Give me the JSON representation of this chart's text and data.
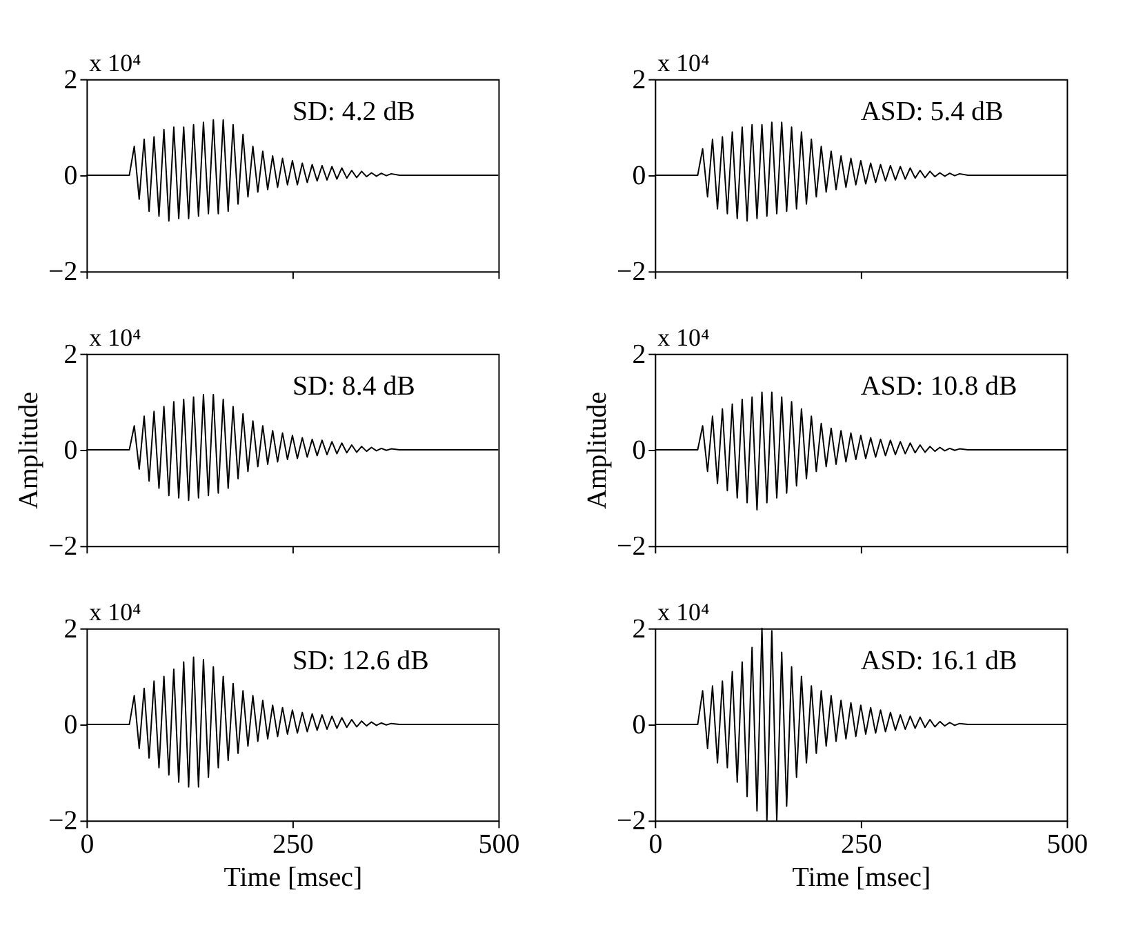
{
  "chart_data": [
    {
      "type": "line",
      "annotations": [
        "x 10⁴",
        "SD: 4.2 dB"
      ],
      "xlim": [
        0,
        500
      ],
      "xticks": [
        0,
        250,
        500
      ],
      "ylim": [
        -2,
        2
      ],
      "yticks": [
        -2,
        0,
        2
      ],
      "tick_labels": "y",
      "x": [
        0,
        52,
        58,
        64,
        70,
        76,
        82,
        88,
        94,
        100,
        106,
        112,
        118,
        124,
        130,
        136,
        142,
        148,
        154,
        160,
        166,
        172,
        178,
        184,
        190,
        196,
        202,
        208,
        214,
        220,
        226,
        232,
        238,
        244,
        250,
        256,
        262,
        268,
        274,
        280,
        286,
        292,
        298,
        304,
        310,
        316,
        322,
        328,
        334,
        340,
        346,
        352,
        358,
        364,
        370,
        380,
        500
      ],
      "series": [
        {
          "color": "#000000",
          "values": [
            0,
            0,
            0.6,
            -0.5,
            0.75,
            -0.75,
            0.8,
            -0.85,
            0.95,
            -0.95,
            1.0,
            -0.9,
            1.0,
            -0.9,
            1.05,
            -0.85,
            1.1,
            -0.8,
            1.15,
            -0.8,
            1.15,
            -0.75,
            1.05,
            -0.6,
            0.85,
            -0.45,
            0.6,
            -0.35,
            0.5,
            -0.3,
            0.4,
            -0.25,
            0.35,
            -0.2,
            0.3,
            -0.2,
            0.25,
            -0.15,
            0.22,
            -0.12,
            0.2,
            -0.1,
            0.18,
            -0.08,
            0.15,
            -0.06,
            0.1,
            -0.05,
            0.08,
            -0.03,
            0.05,
            -0.02,
            0.04,
            -0.01,
            0.03,
            0,
            0
          ]
        }
      ]
    },
    {
      "type": "line",
      "annotations": [
        "x 10⁴",
        "ASD: 5.4 dB"
      ],
      "xlim": [
        0,
        500
      ],
      "xticks": [
        0,
        250,
        500
      ],
      "ylim": [
        -2,
        2
      ],
      "yticks": [
        -2,
        0,
        2
      ],
      "tick_labels": "y",
      "x": [
        0,
        52,
        58,
        64,
        70,
        76,
        82,
        88,
        94,
        100,
        106,
        112,
        118,
        124,
        130,
        136,
        142,
        148,
        154,
        160,
        166,
        172,
        178,
        184,
        190,
        196,
        202,
        208,
        214,
        220,
        226,
        232,
        238,
        244,
        250,
        256,
        262,
        268,
        274,
        280,
        286,
        292,
        298,
        304,
        310,
        316,
        322,
        328,
        334,
        340,
        346,
        352,
        358,
        364,
        370,
        380,
        500
      ],
      "series": [
        {
          "color": "#000000",
          "values": [
            0,
            0,
            0.55,
            -0.45,
            0.75,
            -0.7,
            0.8,
            -0.8,
            0.9,
            -0.9,
            1.0,
            -0.95,
            1.05,
            -0.9,
            1.05,
            -0.85,
            1.1,
            -0.8,
            1.1,
            -0.75,
            1.0,
            -0.7,
            0.9,
            -0.6,
            0.75,
            -0.45,
            0.6,
            -0.35,
            0.5,
            -0.3,
            0.4,
            -0.25,
            0.35,
            -0.2,
            0.3,
            -0.18,
            0.25,
            -0.15,
            0.22,
            -0.12,
            0.2,
            -0.1,
            0.18,
            -0.08,
            0.15,
            -0.06,
            0.1,
            -0.05,
            0.08,
            -0.03,
            0.05,
            -0.02,
            0.04,
            -0.01,
            0.03,
            0,
            0
          ]
        }
      ]
    },
    {
      "type": "line",
      "ylabel": "Amplitude",
      "annotations": [
        "x 10⁴",
        "SD: 8.4 dB"
      ],
      "xlim": [
        0,
        500
      ],
      "xticks": [
        0,
        250,
        500
      ],
      "ylim": [
        -2,
        2
      ],
      "yticks": [
        -2,
        0,
        2
      ],
      "tick_labels": "y",
      "x": [
        0,
        52,
        58,
        64,
        70,
        76,
        82,
        88,
        94,
        100,
        106,
        112,
        118,
        124,
        130,
        136,
        142,
        148,
        154,
        160,
        166,
        172,
        178,
        184,
        190,
        196,
        202,
        208,
        214,
        220,
        226,
        232,
        238,
        244,
        250,
        256,
        262,
        268,
        274,
        280,
        286,
        292,
        298,
        304,
        310,
        316,
        322,
        328,
        334,
        340,
        346,
        352,
        358,
        364,
        370,
        380,
        500
      ],
      "series": [
        {
          "color": "#000000",
          "values": [
            0,
            0,
            0.5,
            -0.4,
            0.7,
            -0.65,
            0.8,
            -0.8,
            0.9,
            -0.95,
            1.0,
            -1.0,
            1.05,
            -1.05,
            1.1,
            -1.0,
            1.15,
            -0.95,
            1.15,
            -0.9,
            1.05,
            -0.8,
            0.9,
            -0.6,
            0.75,
            -0.45,
            0.6,
            -0.35,
            0.5,
            -0.3,
            0.4,
            -0.25,
            0.35,
            -0.2,
            0.3,
            -0.18,
            0.25,
            -0.15,
            0.22,
            -0.12,
            0.2,
            -0.1,
            0.17,
            -0.08,
            0.14,
            -0.06,
            0.1,
            -0.05,
            0.07,
            -0.03,
            0.05,
            -0.02,
            0.03,
            -0.01,
            0.02,
            0,
            0
          ]
        }
      ]
    },
    {
      "type": "line",
      "ylabel": "Amplitude",
      "annotations": [
        "x 10⁴",
        "ASD: 10.8 dB"
      ],
      "xlim": [
        0,
        500
      ],
      "xticks": [
        0,
        250,
        500
      ],
      "ylim": [
        -2,
        2
      ],
      "yticks": [
        -2,
        0,
        2
      ],
      "tick_labels": "y",
      "x": [
        0,
        52,
        58,
        64,
        70,
        76,
        82,
        88,
        94,
        100,
        106,
        112,
        118,
        124,
        130,
        136,
        142,
        148,
        154,
        160,
        166,
        172,
        178,
        184,
        190,
        196,
        202,
        208,
        214,
        220,
        226,
        232,
        238,
        244,
        250,
        256,
        262,
        268,
        274,
        280,
        286,
        292,
        298,
        304,
        310,
        316,
        322,
        328,
        334,
        340,
        346,
        352,
        358,
        364,
        370,
        380,
        500
      ],
      "series": [
        {
          "color": "#000000",
          "values": [
            0,
            0,
            0.5,
            -0.45,
            0.7,
            -0.7,
            0.85,
            -0.85,
            0.95,
            -1.0,
            1.05,
            -1.1,
            1.1,
            -1.25,
            1.2,
            -1.1,
            1.2,
            -1.0,
            1.1,
            -0.9,
            1.0,
            -0.75,
            0.85,
            -0.6,
            0.7,
            -0.45,
            0.55,
            -0.35,
            0.45,
            -0.3,
            0.4,
            -0.25,
            0.35,
            -0.2,
            0.3,
            -0.18,
            0.25,
            -0.15,
            0.22,
            -0.12,
            0.2,
            -0.1,
            0.17,
            -0.08,
            0.14,
            -0.06,
            0.1,
            -0.05,
            0.07,
            -0.03,
            0.05,
            -0.02,
            0.03,
            -0.01,
            0.02,
            0,
            0
          ]
        }
      ]
    },
    {
      "type": "line",
      "xlabel": "Time [msec]",
      "annotations": [
        "x 10⁴",
        "SD: 12.6 dB"
      ],
      "xlim": [
        0,
        500
      ],
      "xticks": [
        0,
        250,
        500
      ],
      "ylim": [
        -2,
        2
      ],
      "yticks": [
        -2,
        0,
        2
      ],
      "x": [
        0,
        52,
        58,
        64,
        70,
        76,
        82,
        88,
        94,
        100,
        106,
        112,
        118,
        124,
        130,
        136,
        142,
        148,
        154,
        160,
        166,
        172,
        178,
        184,
        190,
        196,
        202,
        208,
        214,
        220,
        226,
        232,
        238,
        244,
        250,
        256,
        262,
        268,
        274,
        280,
        286,
        292,
        298,
        304,
        310,
        316,
        322,
        328,
        334,
        340,
        346,
        352,
        358,
        364,
        370,
        380,
        500
      ],
      "series": [
        {
          "color": "#000000",
          "values": [
            0,
            0,
            0.6,
            -0.5,
            0.75,
            -0.7,
            0.9,
            -0.9,
            1.0,
            -1.05,
            1.15,
            -1.2,
            1.3,
            -1.3,
            1.4,
            -1.3,
            1.35,
            -1.1,
            1.2,
            -0.9,
            1.0,
            -0.75,
            0.85,
            -0.6,
            0.7,
            -0.45,
            0.6,
            -0.35,
            0.5,
            -0.3,
            0.4,
            -0.25,
            0.35,
            -0.2,
            0.3,
            -0.18,
            0.25,
            -0.15,
            0.22,
            -0.12,
            0.2,
            -0.1,
            0.17,
            -0.08,
            0.14,
            -0.06,
            0.1,
            -0.05,
            0.07,
            -0.03,
            0.05,
            -0.02,
            0.03,
            -0.01,
            0.02,
            0,
            0
          ]
        }
      ]
    },
    {
      "type": "line",
      "xlabel": "Time [msec]",
      "annotations": [
        "x 10⁴",
        "ASD: 16.1 dB"
      ],
      "xlim": [
        0,
        500
      ],
      "xticks": [
        0,
        250,
        500
      ],
      "ylim": [
        -2,
        2
      ],
      "yticks": [
        -2,
        0,
        2
      ],
      "x": [
        0,
        52,
        58,
        64,
        70,
        76,
        82,
        88,
        94,
        100,
        106,
        112,
        118,
        124,
        130,
        136,
        142,
        148,
        154,
        160,
        166,
        172,
        178,
        184,
        190,
        196,
        202,
        208,
        214,
        220,
        226,
        232,
        238,
        244,
        250,
        256,
        262,
        268,
        274,
        280,
        286,
        292,
        298,
        304,
        310,
        316,
        322,
        328,
        334,
        340,
        346,
        352,
        358,
        364,
        370,
        380,
        500
      ],
      "series": [
        {
          "color": "#000000",
          "values": [
            0,
            0,
            0.7,
            -0.5,
            0.8,
            -0.8,
            0.9,
            -0.9,
            1.1,
            -1.2,
            1.3,
            -1.5,
            1.6,
            -1.8,
            2.0,
            -2.0,
            1.95,
            -2.0,
            1.5,
            -1.7,
            1.2,
            -1.1,
            1.0,
            -0.8,
            0.8,
            -0.6,
            0.7,
            -0.45,
            0.6,
            -0.35,
            0.5,
            -0.3,
            0.45,
            -0.25,
            0.4,
            -0.2,
            0.35,
            -0.18,
            0.3,
            -0.15,
            0.25,
            -0.12,
            0.2,
            -0.1,
            0.17,
            -0.08,
            0.15,
            -0.06,
            0.1,
            -0.05,
            0.06,
            -0.03,
            0.04,
            -0.02,
            0.02,
            0,
            0
          ]
        }
      ]
    }
  ]
}
